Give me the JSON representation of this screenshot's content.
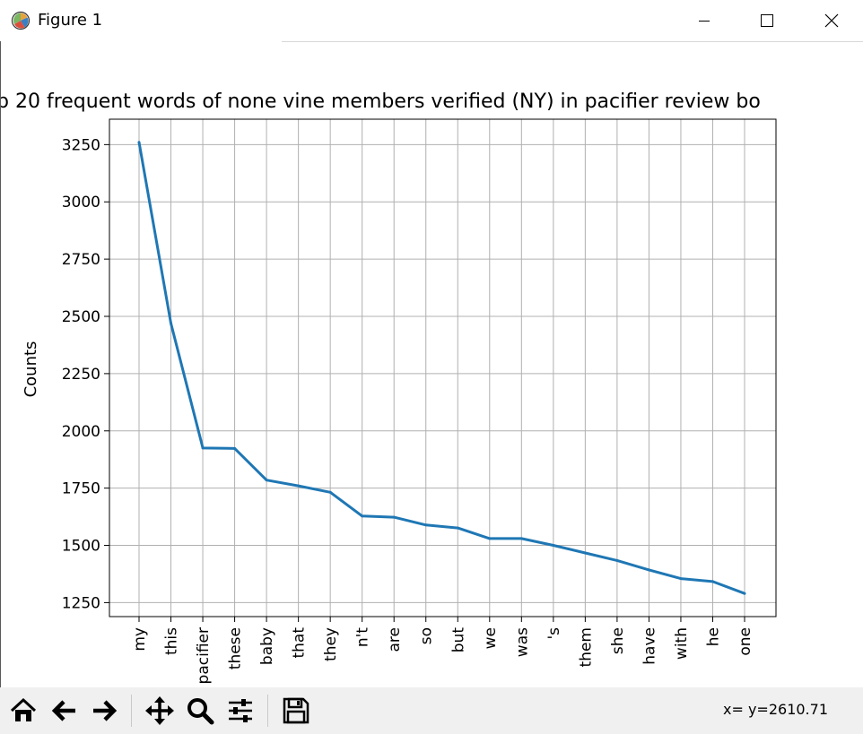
{
  "window": {
    "title": "Figure 1",
    "icons": [
      "app-icon",
      "minimize-icon",
      "maximize-icon",
      "close-icon"
    ]
  },
  "toolbar": {
    "buttons": [
      "home-icon",
      "back-icon",
      "forward-icon",
      "pan-icon",
      "zoom-icon",
      "configure-icon",
      "save-icon"
    ],
    "coords": "x= y=2610.71"
  },
  "colors": {
    "line": "#1f77b4",
    "grid": "#b0b0b0",
    "toolbar_bg": "#f0f0f0"
  },
  "chart_data": {
    "type": "line",
    "title": "p 20 frequent words of none vine members verified (NY) in pacifier review bo",
    "xlabel": "",
    "ylabel": "Counts",
    "categories": [
      "my",
      "this",
      "pacifier",
      "these",
      "baby",
      "that",
      "they",
      "n't",
      "are",
      "so",
      "but",
      "we",
      "was",
      "'s",
      "them",
      "she",
      "have",
      "with",
      "he",
      "one"
    ],
    "values": [
      3260,
      2470,
      1925,
      1923,
      1785,
      1760,
      1732,
      1628,
      1623,
      1589,
      1576,
      1530,
      1530,
      1500,
      1467,
      1434,
      1393,
      1355,
      1342,
      1290
    ],
    "yticks": [
      1250,
      1500,
      1750,
      2000,
      2250,
      2500,
      2750,
      3000,
      3250
    ],
    "ylim": [
      1189,
      3361
    ],
    "grid": true,
    "legend": "none"
  }
}
